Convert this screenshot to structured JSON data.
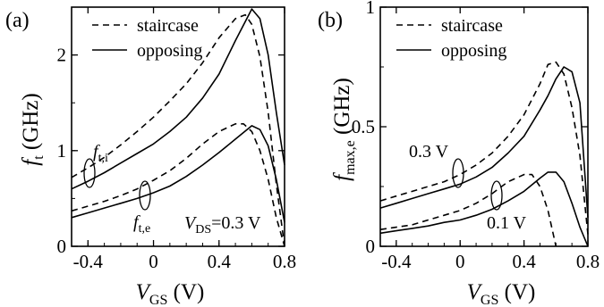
{
  "chart_data": [
    {
      "type": "line",
      "panel_label": "(a)",
      "xlabel": {
        "main": "V",
        "sub": "GS",
        "rest": " (V)"
      },
      "ylabel": {
        "main": "f",
        "sub": "t",
        "rest": " (GHz)"
      },
      "xlim": [
        -0.5,
        0.8
      ],
      "ylim": [
        0,
        2.5
      ],
      "xticks": [
        -0.4,
        0,
        0.4,
        0.8
      ],
      "xtick_labels": [
        "-0.4",
        "0",
        "0.4",
        "0.8"
      ],
      "yticks": [
        0,
        1,
        2
      ],
      "ytick_labels": [
        "0",
        "1",
        "2"
      ],
      "legend": {
        "placement": "top-left",
        "entries": [
          {
            "label": "staircase",
            "style": "dashed"
          },
          {
            "label": "opposing",
            "style": "solid"
          }
        ]
      },
      "annotations": [
        {
          "main": "f",
          "sub": "t,i"
        },
        {
          "main": "f",
          "sub": "t,e"
        },
        {
          "main": "V",
          "sub": "DS",
          "rest": "=0.3 V"
        }
      ],
      "series": [
        {
          "style": "dashed",
          "x": [
            -0.5,
            -0.4,
            -0.3,
            -0.2,
            -0.1,
            0.0,
            0.1,
            0.2,
            0.3,
            0.4,
            0.5,
            0.56,
            0.6,
            0.65,
            0.7,
            0.75,
            0.8
          ],
          "y": [
            0.72,
            0.82,
            0.93,
            1.06,
            1.2,
            1.35,
            1.52,
            1.7,
            1.92,
            2.18,
            2.38,
            2.42,
            2.32,
            1.98,
            1.4,
            0.65,
            0.0
          ]
        },
        {
          "style": "solid",
          "x": [
            -0.5,
            -0.4,
            -0.3,
            -0.2,
            -0.1,
            0.0,
            0.1,
            0.2,
            0.3,
            0.4,
            0.5,
            0.6,
            0.65,
            0.7,
            0.75,
            0.8
          ],
          "y": [
            0.6,
            0.68,
            0.77,
            0.87,
            0.97,
            1.07,
            1.2,
            1.35,
            1.55,
            1.8,
            2.15,
            2.48,
            2.38,
            2.0,
            1.4,
            0.85
          ]
        },
        {
          "style": "dashed",
          "x": [
            -0.5,
            -0.4,
            -0.3,
            -0.2,
            -0.1,
            0.0,
            0.1,
            0.2,
            0.3,
            0.4,
            0.5,
            0.55,
            0.6,
            0.65,
            0.7,
            0.75,
            0.8
          ],
          "y": [
            0.37,
            0.42,
            0.47,
            0.53,
            0.6,
            0.69,
            0.79,
            0.92,
            1.07,
            1.2,
            1.28,
            1.28,
            1.2,
            1.0,
            0.7,
            0.3,
            0.0
          ]
        },
        {
          "style": "solid",
          "x": [
            -0.5,
            -0.4,
            -0.3,
            -0.2,
            -0.1,
            0.0,
            0.1,
            0.2,
            0.3,
            0.4,
            0.5,
            0.6,
            0.65,
            0.7,
            0.75,
            0.8
          ],
          "y": [
            0.3,
            0.35,
            0.4,
            0.45,
            0.5,
            0.56,
            0.63,
            0.73,
            0.85,
            0.98,
            1.12,
            1.26,
            1.22,
            1.05,
            0.7,
            0.25
          ]
        }
      ]
    },
    {
      "type": "line",
      "panel_label": "(b)",
      "xlabel": {
        "main": "V",
        "sub": "GS",
        "rest": " (V)"
      },
      "ylabel": {
        "main": "f",
        "sub": "max,e",
        "rest": " (GHz)"
      },
      "xlim": [
        -0.5,
        0.8
      ],
      "ylim": [
        0,
        1
      ],
      "xticks": [
        -0.4,
        0,
        0.4,
        0.8
      ],
      "xtick_labels": [
        "-0.4",
        "0",
        "0.4",
        "0.8"
      ],
      "yticks": [
        0,
        0.5,
        1
      ],
      "ytick_labels": [
        "0",
        "0.5",
        "1"
      ],
      "legend": {
        "placement": "top-left",
        "entries": [
          {
            "label": "staircase",
            "style": "dashed"
          },
          {
            "label": "opposing",
            "style": "solid"
          }
        ]
      },
      "annotations": [
        {
          "text": "0.3 V"
        },
        {
          "text": "0.1 V"
        }
      ],
      "series": [
        {
          "style": "dashed",
          "x": [
            -0.5,
            -0.4,
            -0.3,
            -0.2,
            -0.1,
            0.0,
            0.1,
            0.2,
            0.3,
            0.4,
            0.5,
            0.55,
            0.6,
            0.65,
            0.7,
            0.75,
            0.8
          ],
          "y": [
            0.19,
            0.21,
            0.23,
            0.25,
            0.27,
            0.3,
            0.34,
            0.39,
            0.46,
            0.55,
            0.68,
            0.76,
            0.77,
            0.72,
            0.58,
            0.38,
            0.05
          ]
        },
        {
          "style": "solid",
          "x": [
            -0.5,
            -0.4,
            -0.3,
            -0.2,
            -0.1,
            0.0,
            0.1,
            0.2,
            0.3,
            0.4,
            0.5,
            0.55,
            0.6,
            0.65,
            0.7,
            0.75,
            0.8
          ],
          "y": [
            0.16,
            0.18,
            0.2,
            0.22,
            0.24,
            0.26,
            0.29,
            0.33,
            0.39,
            0.46,
            0.57,
            0.63,
            0.7,
            0.75,
            0.73,
            0.6,
            0.12
          ]
        },
        {
          "style": "dashed",
          "x": [
            -0.5,
            -0.4,
            -0.3,
            -0.2,
            -0.1,
            0.0,
            0.1,
            0.2,
            0.3,
            0.4,
            0.45,
            0.5,
            0.55,
            0.6
          ],
          "y": [
            0.07,
            0.08,
            0.09,
            0.11,
            0.13,
            0.15,
            0.18,
            0.22,
            0.27,
            0.3,
            0.3,
            0.25,
            0.15,
            0.0
          ]
        },
        {
          "style": "solid",
          "x": [
            -0.5,
            -0.4,
            -0.3,
            -0.2,
            -0.1,
            0.0,
            0.1,
            0.2,
            0.3,
            0.4,
            0.5,
            0.55,
            0.6,
            0.65,
            0.7,
            0.75,
            0.8
          ],
          "y": [
            0.055,
            0.065,
            0.075,
            0.085,
            0.1,
            0.11,
            0.13,
            0.155,
            0.19,
            0.23,
            0.285,
            0.31,
            0.31,
            0.27,
            0.18,
            0.08,
            0.0
          ]
        }
      ]
    }
  ]
}
